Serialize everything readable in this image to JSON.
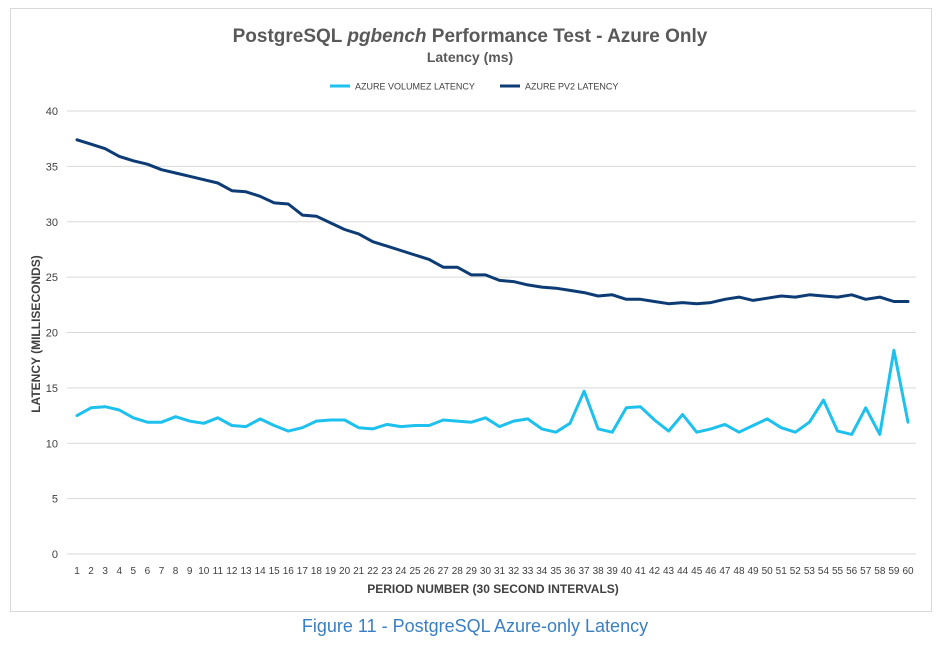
{
  "chart_data": {
    "type": "line",
    "title_prefix": "PostgreSQL ",
    "title_italic": "pgbench",
    "title_suffix": " Performance Test - Azure Only",
    "subtitle": "Latency (ms)",
    "xlabel": "PERIOD NUMBER (30 SECOND INTERVALS)",
    "ylabel": "LATENCY (MILLISECONDS)",
    "ylim": [
      0,
      40
    ],
    "yticks": [
      0,
      5,
      10,
      15,
      20,
      25,
      30,
      35,
      40
    ],
    "legend_position": "top",
    "x": [
      1,
      2,
      3,
      4,
      5,
      6,
      7,
      8,
      9,
      10,
      11,
      12,
      13,
      14,
      15,
      16,
      17,
      18,
      19,
      20,
      21,
      22,
      23,
      24,
      25,
      26,
      27,
      28,
      29,
      30,
      31,
      32,
      33,
      34,
      35,
      36,
      37,
      38,
      39,
      40,
      41,
      42,
      43,
      44,
      45,
      46,
      47,
      48,
      49,
      50,
      51,
      52,
      53,
      54,
      55,
      56,
      57,
      58,
      59,
      60
    ],
    "series": [
      {
        "name": "AZURE VOLUMEZ LATENCY",
        "color": "#1ec1ee",
        "values": [
          12.5,
          13.2,
          13.3,
          13.0,
          12.3,
          11.9,
          11.9,
          12.4,
          12.0,
          11.8,
          12.3,
          11.6,
          11.5,
          12.2,
          11.6,
          11.1,
          11.4,
          12.0,
          12.1,
          12.1,
          11.4,
          11.3,
          11.7,
          11.5,
          11.6,
          11.6,
          12.1,
          12.0,
          11.9,
          12.3,
          11.5,
          12.0,
          12.2,
          11.3,
          11.0,
          11.8,
          14.7,
          11.3,
          11.0,
          13.2,
          13.3,
          12.1,
          11.1,
          12.6,
          11.0,
          11.3,
          11.7,
          11.0,
          11.6,
          12.2,
          11.4,
          11.0,
          11.9,
          13.9,
          11.1,
          10.8,
          13.2,
          10.8,
          18.4,
          11.9
        ]
      },
      {
        "name": "AZURE PV2 LATENCY",
        "color": "#0d3c75",
        "values": [
          37.4,
          37.0,
          36.6,
          35.9,
          35.5,
          35.2,
          34.7,
          34.4,
          34.1,
          33.8,
          33.5,
          32.8,
          32.7,
          32.3,
          31.7,
          31.6,
          30.6,
          30.5,
          29.9,
          29.3,
          28.9,
          28.2,
          27.8,
          27.4,
          27.0,
          26.6,
          25.9,
          25.9,
          25.2,
          25.2,
          24.7,
          24.6,
          24.3,
          24.1,
          24.0,
          23.8,
          23.6,
          23.3,
          23.4,
          23.0,
          23.0,
          22.8,
          22.6,
          22.7,
          22.6,
          22.7,
          23.0,
          23.2,
          22.9,
          23.1,
          23.3,
          23.2,
          23.4,
          23.3,
          23.2,
          23.4,
          23.0,
          23.2,
          22.8,
          22.8
        ]
      }
    ]
  },
  "caption": "Figure 11 - PostgreSQL Azure-only Latency"
}
